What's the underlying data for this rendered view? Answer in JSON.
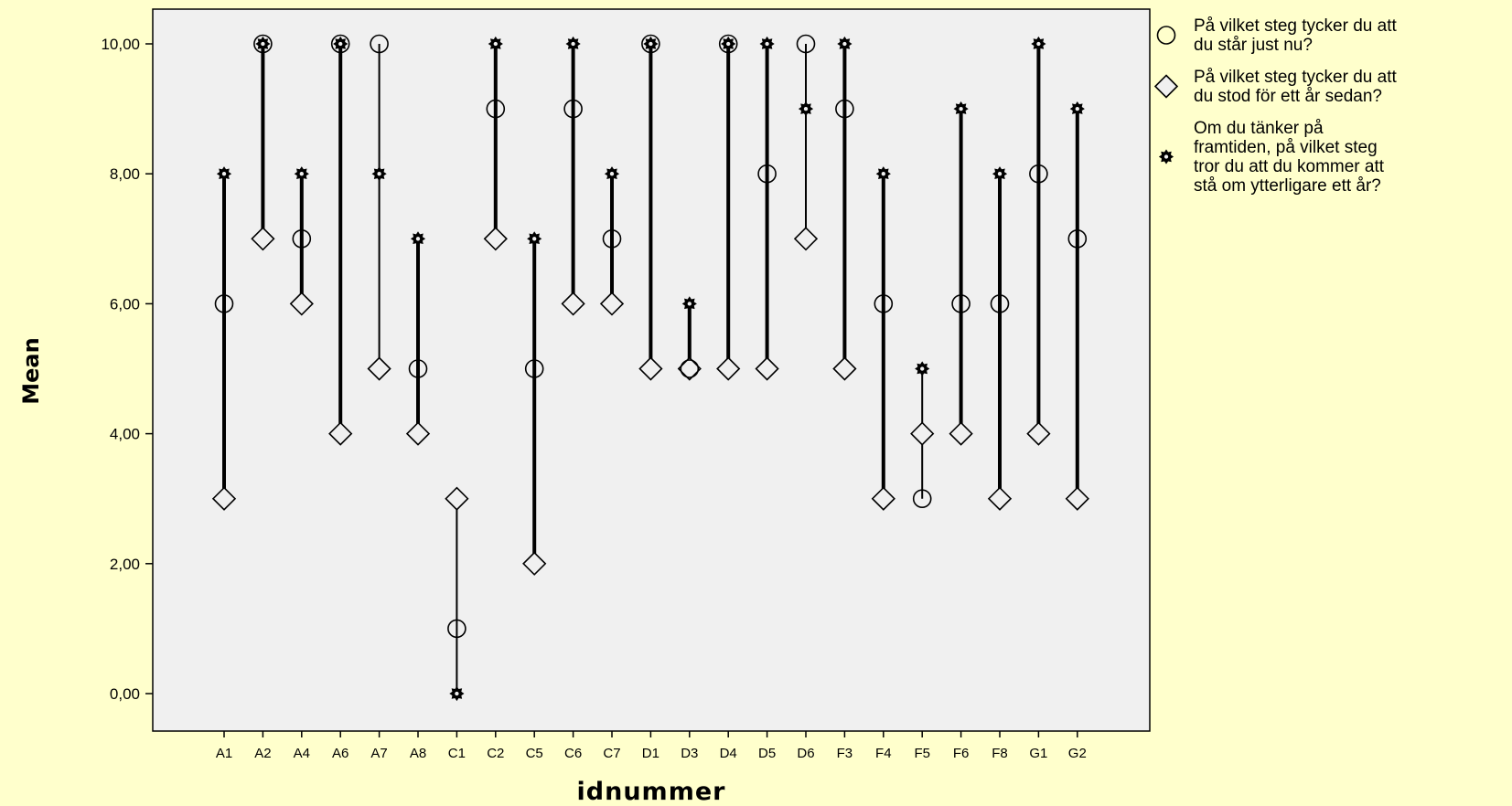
{
  "chart_data": {
    "type": "scatter",
    "subtype": "high-low-close (drop lines)",
    "xlabel": "idnummer",
    "ylabel": "Mean",
    "ylim": [
      0,
      10
    ],
    "yticks": [
      "0,00",
      "2,00",
      "4,00",
      "6,00",
      "8,00",
      "10,00"
    ],
    "ytick_values": [
      0,
      2,
      4,
      6,
      8,
      10
    ],
    "grid": false,
    "legend_position": "right",
    "background": "#ffffcc",
    "plot_background": "#f0f0f0",
    "categories": [
      "A1",
      "A2",
      "A4",
      "A6",
      "A7",
      "A8",
      "C1",
      "C2",
      "C5",
      "C6",
      "C7",
      "D1",
      "D3",
      "D4",
      "D5",
      "D6",
      "F3",
      "F4",
      "F5",
      "F6",
      "F8",
      "G1",
      "G2"
    ],
    "series": [
      {
        "name": "På vilket steg tycker du att du står just nu?",
        "legend_lines": [
          "På vilket steg tycker du att",
          "du står just nu?"
        ],
        "marker": "circle",
        "values": [
          6,
          10,
          7,
          10,
          10,
          5,
          1,
          9,
          5,
          9,
          7,
          10,
          5,
          10,
          8,
          10,
          9,
          6,
          3,
          6,
          6,
          8,
          7
        ]
      },
      {
        "name": "På vilket steg tycker du att du stod för ett år sedan?",
        "legend_lines": [
          "På vilket steg tycker du att",
          "du stod för ett år sedan?"
        ],
        "marker": "diamond",
        "values": [
          3,
          7,
          6,
          4,
          5,
          4,
          3,
          7,
          2,
          6,
          6,
          5,
          5,
          5,
          5,
          7,
          5,
          3,
          4,
          4,
          3,
          4,
          3
        ]
      },
      {
        "name": "Om du tänker på framtiden, på vilket steg tror du att du kommer att stå om ytterligare ett år?",
        "legend_lines": [
          "Om du tänker på",
          "framtiden, på vilket steg",
          "tror du att du kommer att",
          "stå om ytterligare ett år?"
        ],
        "marker": "star",
        "values": [
          8,
          10,
          8,
          10,
          8,
          7,
          0,
          10,
          7,
          10,
          8,
          10,
          6,
          10,
          10,
          9,
          10,
          8,
          5,
          9,
          8,
          10,
          9
        ]
      }
    ]
  }
}
